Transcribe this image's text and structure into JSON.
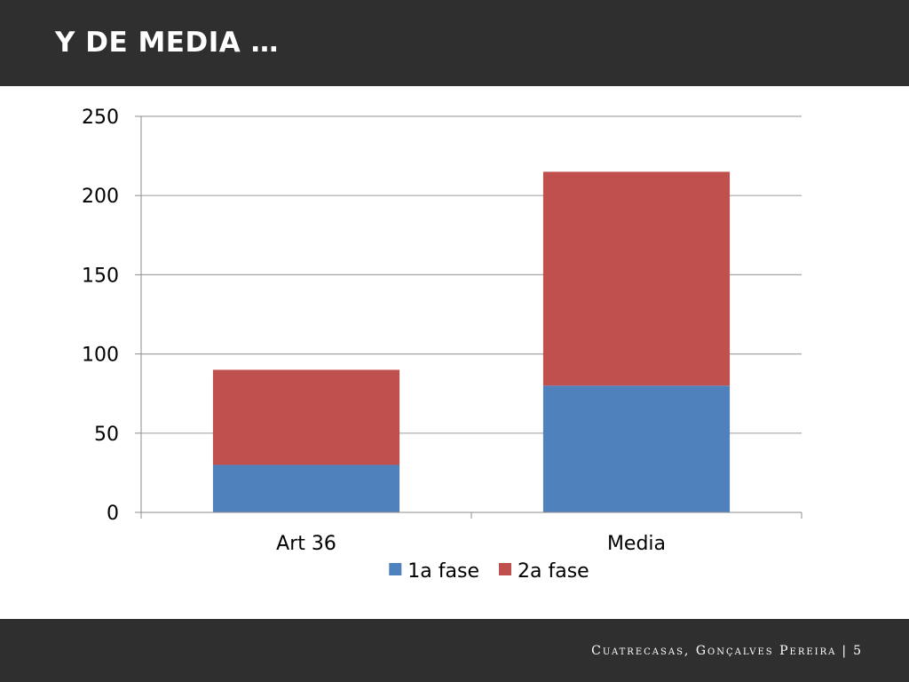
{
  "slide": {
    "title": "Y DE MEDIA …",
    "footer_brand": "Cuatrecasas, Gonçalves Pereira",
    "footer_separator": "|",
    "page_number": "5"
  },
  "colors": {
    "header_bg": "#2f2f2f",
    "series_1": "#4f81bd",
    "series_2": "#c0504d",
    "gridline": "#a6a6a6"
  },
  "chart_data": {
    "type": "bar",
    "stacked": true,
    "categories": [
      "Art 36",
      "Media"
    ],
    "series": [
      {
        "name": "1a fase",
        "values": [
          30,
          80
        ],
        "color": "#4f81bd"
      },
      {
        "name": "2a fase",
        "values": [
          60,
          135
        ],
        "color": "#c0504d"
      }
    ],
    "ylim": [
      0,
      250
    ],
    "yticks": [
      0,
      50,
      100,
      150,
      200,
      250
    ],
    "grid": true,
    "legend": "bottom",
    "title": "",
    "xlabel": "",
    "ylabel": ""
  }
}
